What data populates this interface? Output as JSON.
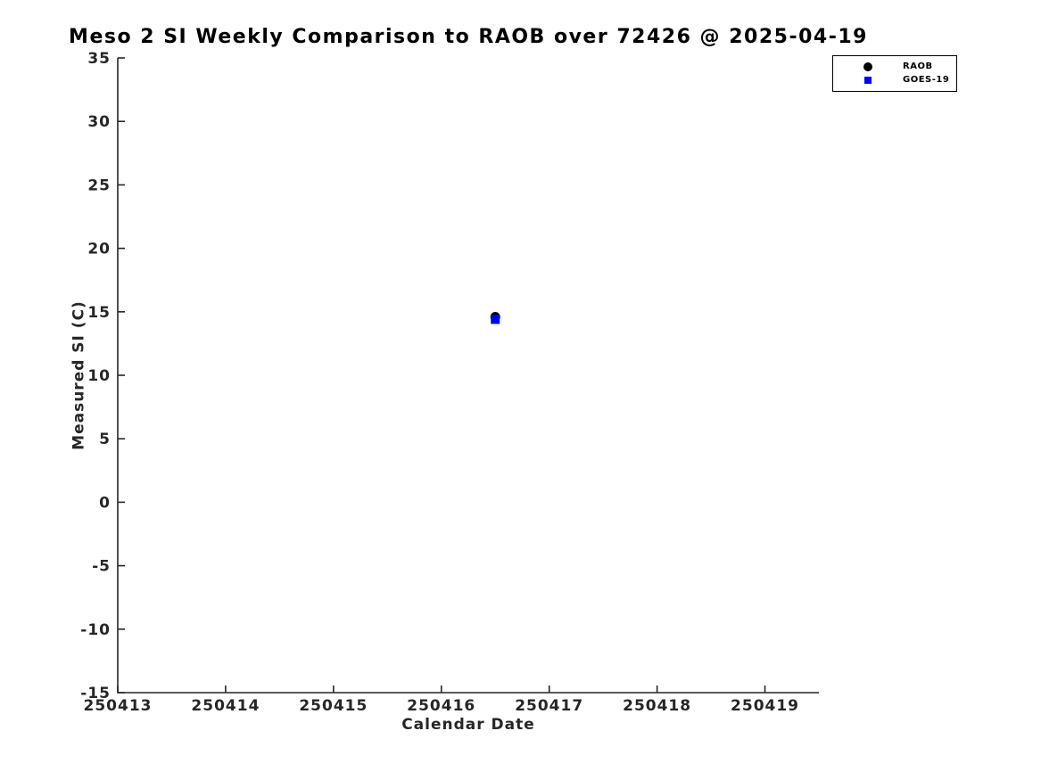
{
  "chart_data": {
    "type": "scatter",
    "title": "Meso 2 SI Weekly Comparison to RAOB over 72426 @ 2025-04-19",
    "xlabel": "Calendar Date",
    "ylabel": "Measured SI (C)",
    "xlim": [
      250413,
      250419.5
    ],
    "ylim": [
      -15,
      35
    ],
    "x_ticks": [
      250413,
      250414,
      250415,
      250416,
      250417,
      250418,
      250419
    ],
    "y_ticks": [
      -15,
      -10,
      -5,
      0,
      5,
      10,
      15,
      20,
      25,
      30,
      35
    ],
    "grid": false,
    "axis_style": "open-left-bottom",
    "tick_direction": "in",
    "legend_position": "top-right-outside",
    "axis_color": "#262626",
    "background_color": "#ffffff",
    "series": [
      {
        "name": "RAOB",
        "marker": "circle",
        "color": "#000000",
        "marker_size": 11,
        "points": [
          {
            "x": 250416.5,
            "y": 14.6
          }
        ]
      },
      {
        "name": "GOES-19",
        "marker": "square",
        "color": "#0000ff",
        "marker_size": 10,
        "points": [
          {
            "x": 250416.5,
            "y": 14.4
          }
        ]
      }
    ]
  }
}
